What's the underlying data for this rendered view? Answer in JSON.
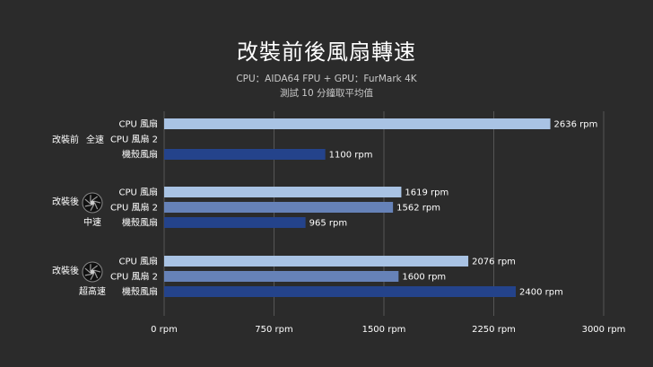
{
  "title": "改裝前後風扇轉速",
  "subtitle_line1": "CPU：AIDA64 FPU + GPU：FurMark 4K",
  "subtitle_line2": "測試 10 分鐘取平均值",
  "colors": {
    "background": "#2b2b2b",
    "cpu_fan": "#a9c3e4",
    "cpu_fan_2": "#6682b8",
    "case_fan": "#24438b",
    "grid": "#555555",
    "text": "#ffffff"
  },
  "icons": [
    "fan-icon",
    "fan-icon"
  ],
  "chart_data": {
    "type": "bar",
    "orientation": "horizontal",
    "title": "改裝前後風扇轉速",
    "xlim": [
      0,
      3000
    ],
    "x_ticks": [
      0,
      750,
      1500,
      2250,
      3000
    ],
    "x_tick_labels": [
      "0 rpm",
      "750 rpm",
      "1500 rpm",
      "2250 rpm",
      "3000 rpm"
    ],
    "grid": true,
    "groups": [
      {
        "label_left": "改裝前",
        "label_right": "全速",
        "label_sub": "",
        "icon": false,
        "bars": [
          {
            "label": "CPU 風扇",
            "value": 2636,
            "value_label": "2636 rpm",
            "color": "#a9c3e4"
          },
          {
            "label": "CPU 風扇 2",
            "value": null,
            "value_label": "",
            "color": "#6682b8"
          },
          {
            "label": "機殼風扇",
            "value": 1100,
            "value_label": "1100 rpm",
            "color": "#24438b"
          }
        ]
      },
      {
        "label_left": "改裝後",
        "label_right": "",
        "label_sub": "中速",
        "icon": true,
        "bars": [
          {
            "label": "CPU 風扇",
            "value": 1619,
            "value_label": "1619 rpm",
            "color": "#a9c3e4"
          },
          {
            "label": "CPU 風扇 2",
            "value": 1562,
            "value_label": "1562 rpm",
            "color": "#6682b8"
          },
          {
            "label": "機殼風扇",
            "value": 965,
            "value_label": "965 rpm",
            "color": "#24438b"
          }
        ]
      },
      {
        "label_left": "改裝後",
        "label_right": "",
        "label_sub": "超高速",
        "icon": true,
        "bars": [
          {
            "label": "CPU 風扇",
            "value": 2076,
            "value_label": "2076 rpm",
            "color": "#a9c3e4"
          },
          {
            "label": "CPU 風扇 2",
            "value": 1600,
            "value_label": "1600 rpm",
            "color": "#6682b8"
          },
          {
            "label": "機殼風扇",
            "value": 2400,
            "value_label": "2400 rpm",
            "color": "#24438b"
          }
        ]
      }
    ]
  }
}
